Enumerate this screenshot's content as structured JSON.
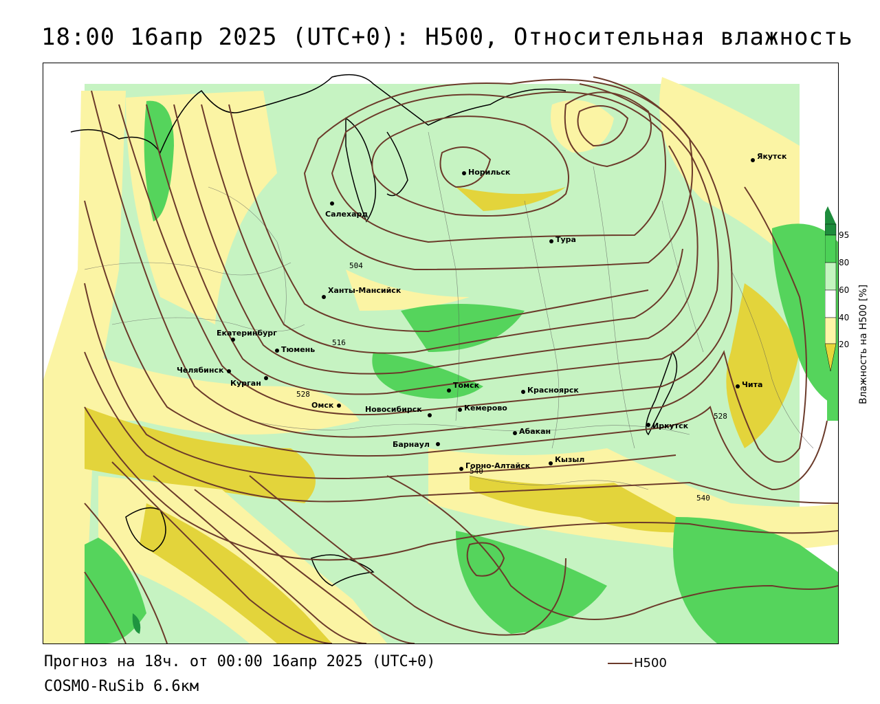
{
  "header": {
    "title": "18:00 16апр 2025 (UTC+0): H500, Относительная влажность"
  },
  "footer": {
    "forecast": "Прогноз на 18ч. от 00:00 16апр 2025 (UTC+0)",
    "model": "COSMO-RuSib 6.6км",
    "legend_label": "H500"
  },
  "colorbar": {
    "title": "Влажность на H500 [%]",
    "ticks": [
      "95",
      "80",
      "60",
      "40",
      "20"
    ],
    "colors": [
      "#1e8c3c",
      "#4cd157",
      "#c4f5c0",
      "#ffffff",
      "#fdf6a7",
      "#e6d63a"
    ]
  },
  "colors": {
    "contour": "#6b3a2a",
    "dry_strong": "#e3d43b",
    "dry_light": "#fbf4a4",
    "moist_light": "#c6f3c2",
    "moist_mid": "#55d45c",
    "moist_strong": "#1f9440"
  },
  "contour_labels": [
    "504",
    "516",
    "528",
    "528",
    "540",
    "540"
  ],
  "cities": [
    {
      "name": "Норильск"
    },
    {
      "name": "Якутск"
    },
    {
      "name": "Салехард"
    },
    {
      "name": "Тура"
    },
    {
      "name": "Ханты-Мансийск"
    },
    {
      "name": "Екатеринбург"
    },
    {
      "name": "Тюмень"
    },
    {
      "name": "Челябинск"
    },
    {
      "name": "Курган"
    },
    {
      "name": "Омск"
    },
    {
      "name": "Новосибирск"
    },
    {
      "name": "Томск"
    },
    {
      "name": "Кемерово"
    },
    {
      "name": "Красноярск"
    },
    {
      "name": "Абакан"
    },
    {
      "name": "Барнаул"
    },
    {
      "name": "Горно-Алтайск"
    },
    {
      "name": "Кызыл"
    },
    {
      "name": "Иркутск"
    },
    {
      "name": "Чита"
    }
  ]
}
